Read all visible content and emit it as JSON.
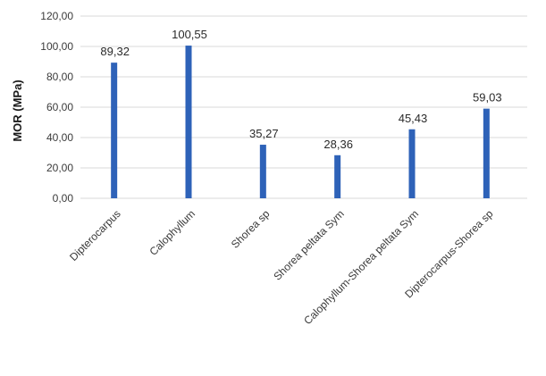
{
  "chart_data": {
    "type": "bar",
    "categories": [
      "Dipterocarpus",
      "Calophyllum",
      "Shorea sp",
      "Shorea peltata Sym",
      "Calophyllum-Shorea peltata Sym",
      "Dipterocarpus-Shorea sp"
    ],
    "values": [
      89.32,
      100.55,
      35.27,
      28.36,
      45.43,
      59.03
    ],
    "value_labels": [
      "89,32",
      "100,55",
      "35,27",
      "28,36",
      "45,43",
      "59,03"
    ],
    "ylabel": "MOR (MPa)",
    "ylim": [
      0,
      120
    ],
    "yticks": [
      0,
      20,
      40,
      60,
      80,
      100,
      120
    ],
    "ytick_labels": [
      "0,00",
      "20,00",
      "40,00",
      "60,00",
      "80,00",
      "100,00",
      "120,00"
    ],
    "bar_color": "#2e62b8",
    "grid": true,
    "grid_color": "#d9d9d9"
  }
}
